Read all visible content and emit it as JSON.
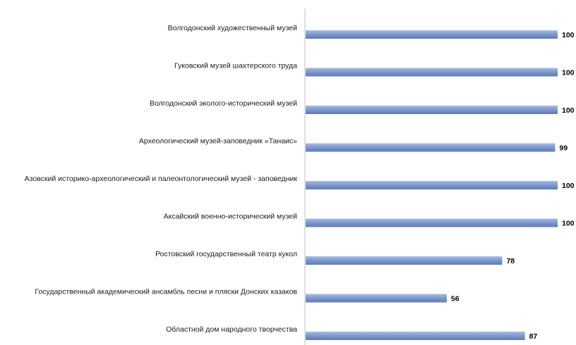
{
  "chart_data": {
    "type": "bar",
    "orientation": "horizontal",
    "categories": [
      "Волгодонский художественный музей",
      "Гуковский музей шахтерского труда",
      "Волгодонский эколого-исторический музей",
      "Археологический музей-заповедник «Танаис»",
      "Азовский историко-археологический и палеонтологический музей - заповедник",
      "Аксайский военно-исторический музей",
      "Ростовский государственный театр кукол",
      "Государственный академический ансамбль песни и пляски Донских казаков",
      "Областной дом народного творчества"
    ],
    "values": [
      100,
      100,
      100,
      99,
      100,
      100,
      78,
      56,
      87
    ],
    "value_labels": [
      "100",
      "100",
      "100",
      "99",
      "100",
      "100",
      "78",
      "56",
      "87"
    ],
    "xlim": [
      0,
      100
    ],
    "grid": false,
    "legend": "none",
    "data_labels": true,
    "colors": {
      "bar_top": "#a9bde0",
      "bar_mid": "#7f9acd",
      "bar_bottom": "#5d7bb5",
      "axis": "#bfbfbf",
      "text": "#1a1a1a"
    }
  }
}
